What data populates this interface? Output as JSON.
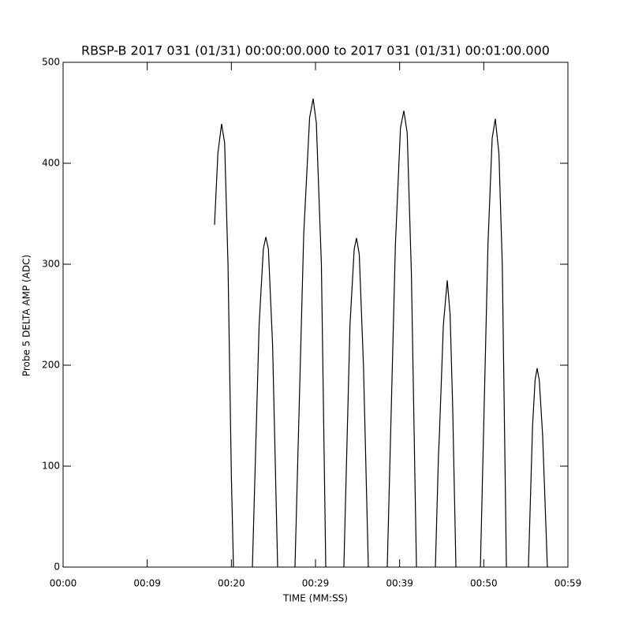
{
  "chart_data": {
    "type": "line",
    "title": "RBSP-B 2017 031 (01/31) 00:00:00.000 to 2017 031 (01/31) 00:01:00.000",
    "xlabel": "TIME (MM:SS)",
    "ylabel": "Probe 5 DELTA AMP (ADC)",
    "xlim": [
      0,
      60
    ],
    "ylim": [
      0,
      500
    ],
    "xticks": [
      {
        "value": 0,
        "label": "00:00"
      },
      {
        "value": 10,
        "label": "00:09"
      },
      {
        "value": 20,
        "label": "00:20"
      },
      {
        "value": 30,
        "label": "00:29"
      },
      {
        "value": 40,
        "label": "00:39"
      },
      {
        "value": 50,
        "label": "00:50"
      },
      {
        "value": 60,
        "label": "00:59"
      }
    ],
    "yticks": [
      0,
      100,
      200,
      300,
      400,
      500
    ],
    "color": "#000000",
    "x": [
      18.0,
      18.4,
      18.84,
      19.2,
      19.6,
      20.0,
      20.25,
      21.4,
      22.5,
      23.3,
      23.8,
      24.1,
      24.4,
      24.9,
      25.5,
      26.5,
      27.56,
      28.6,
      29.3,
      29.72,
      30.1,
      30.7,
      31.22,
      32.3,
      33.37,
      34.1,
      34.6,
      34.87,
      35.2,
      35.7,
      36.28,
      37.4,
      38.53,
      39.5,
      40.1,
      40.5,
      40.9,
      41.4,
      42.0,
      43.1,
      44.25,
      44.62,
      44.7,
      45.2,
      45.66,
      46.0,
      46.3,
      46.69,
      48.1,
      49.6,
      50.5,
      51.0,
      51.37,
      51.8,
      52.2,
      52.69,
      54.0,
      55.31,
      55.8,
      56.1,
      56.34,
      56.6,
      57.0,
      57.56
    ],
    "values": [
      339,
      410,
      439,
      420,
      300,
      90,
      0,
      null,
      0,
      240,
      315,
      327,
      315,
      220,
      0,
      null,
      0,
      330,
      445,
      464,
      440,
      300,
      0,
      null,
      0,
      240,
      315,
      326,
      310,
      200,
      0,
      null,
      0,
      320,
      435,
      452,
      430,
      290,
      0,
      null,
      0,
      112,
      125,
      240,
      284,
      250,
      160,
      0,
      null,
      0,
      320,
      425,
      444,
      410,
      300,
      0,
      null,
      0,
      140,
      185,
      197,
      185,
      130,
      0
    ]
  }
}
